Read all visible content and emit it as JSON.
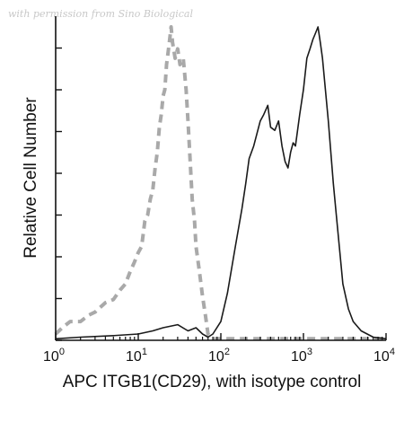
{
  "watermark": "with permission from Sino Biological",
  "chart_data": {
    "type": "line",
    "title": "",
    "xlabel": "APC ITGB1(CD29), with isotype control",
    "ylabel": "Relative Cell Number",
    "x_scale": "log",
    "xlim": [
      1,
      10000
    ],
    "ylim": [
      0,
      100
    ],
    "x_ticks": [
      {
        "value": 1,
        "base": "10",
        "exp": "0"
      },
      {
        "value": 10,
        "base": "10",
        "exp": "1"
      },
      {
        "value": 100,
        "base": "10",
        "exp": "2"
      },
      {
        "value": 1000,
        "base": "10",
        "exp": "3"
      },
      {
        "value": 10000,
        "base": "10",
        "exp": "4"
      }
    ],
    "y_ticks_count": 8,
    "grid": false,
    "legend": "none",
    "series": [
      {
        "style": "dashed",
        "color": "#a9a9a9",
        "x": [
          1,
          1.2,
          1.5,
          2,
          2.5,
          3,
          4,
          5,
          6,
          7,
          8,
          9,
          10,
          11,
          12,
          13,
          14,
          15,
          16,
          17,
          18,
          19,
          20,
          21,
          22,
          23,
          24,
          25,
          26,
          28,
          30,
          32,
          35,
          38,
          40,
          42,
          45,
          48,
          50,
          55,
          60,
          65,
          70,
          80,
          100,
          150,
          300,
          1000,
          10000
        ],
        "y": [
          2,
          4,
          6,
          6,
          8,
          9,
          12,
          13,
          16,
          18,
          22,
          25,
          28,
          30,
          38,
          40,
          45,
          48,
          55,
          60,
          68,
          72,
          78,
          80,
          88,
          92,
          96,
          100,
          95,
          90,
          93,
          88,
          90,
          80,
          70,
          60,
          45,
          38,
          30,
          22,
          14,
          8,
          2,
          0.5,
          0.5,
          0.5,
          0.5,
          0.5,
          0.5
        ]
      },
      {
        "style": "solid",
        "color": "#1a1a1a",
        "x": [
          1,
          2,
          5,
          10,
          15,
          20,
          30,
          40,
          50,
          60,
          70,
          80,
          100,
          120,
          150,
          180,
          200,
          220,
          250,
          300,
          330,
          370,
          400,
          450,
          500,
          550,
          600,
          650,
          700,
          750,
          800,
          900,
          1000,
          1100,
          1200,
          1300,
          1400,
          1500,
          1600,
          1700,
          2000,
          2300,
          2500,
          3000,
          3500,
          4000,
          5000,
          7000,
          10000
        ],
        "y": [
          0.5,
          1,
          1.5,
          2,
          3,
          4,
          5,
          3,
          4,
          2,
          1,
          2,
          6,
          15,
          30,
          42,
          50,
          58,
          62,
          70,
          72,
          75,
          68,
          67,
          70,
          62,
          57,
          55,
          60,
          63,
          62,
          72,
          80,
          90,
          93,
          96,
          98,
          100,
          95,
          90,
          70,
          50,
          40,
          18,
          10,
          6,
          3,
          1,
          0.5
        ]
      }
    ]
  }
}
